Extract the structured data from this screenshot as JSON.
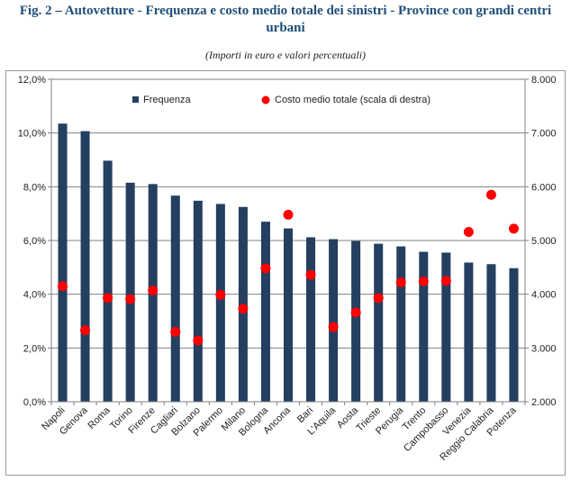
{
  "title": "Fig. 2 – Autovetture - Frequenza e costo medio totale dei sinistri - Province con grandi centri urbani",
  "subtitle": "(Importi in euro e valori percentuali)",
  "chart_data": {
    "type": "bar",
    "categories": [
      "Napoli",
      "Genova",
      "Roma",
      "Torino",
      "Firenze",
      "Cagliari",
      "Bolzano",
      "Palermo",
      "Milano",
      "Bologna",
      "Ancona",
      "Bari",
      "L'Aquila",
      "Aosta",
      "Trieste",
      "Perugia",
      "Trento",
      "Campobasso",
      "Venezia",
      "Reggio Calabria",
      "Potenza"
    ],
    "series": [
      {
        "name": "Frequenza",
        "type": "bar",
        "axis": "left",
        "color": "#243f60",
        "values": [
          10.35,
          10.07,
          8.97,
          8.15,
          8.1,
          7.67,
          7.48,
          7.36,
          7.25,
          6.7,
          6.45,
          6.12,
          6.05,
          5.98,
          5.88,
          5.78,
          5.58,
          5.55,
          5.18,
          5.12,
          4.97
        ]
      },
      {
        "name": "Costo medio totale (scala di destra)",
        "type": "scatter",
        "axis": "right",
        "color": "#ff0000",
        "values": [
          4150,
          3330,
          3930,
          3910,
          4070,
          3300,
          3140,
          3990,
          3730,
          4480,
          5480,
          4360,
          3390,
          3660,
          3930,
          4220,
          4240,
          4250,
          5160,
          5850,
          5220
        ]
      }
    ],
    "y_left": {
      "ylim": [
        0,
        12
      ],
      "ticks": [
        "0,0%",
        "2,0%",
        "4,0%",
        "6,0%",
        "8,0%",
        "10,0%",
        "12,0%"
      ]
    },
    "y_right": {
      "ylim": [
        2000,
        8000
      ],
      "ticks": [
        "2.000",
        "3.000",
        "4.000",
        "5.000",
        "6.000",
        "7.000",
        "8.000"
      ]
    },
    "grid": true,
    "legend_position": "top"
  }
}
